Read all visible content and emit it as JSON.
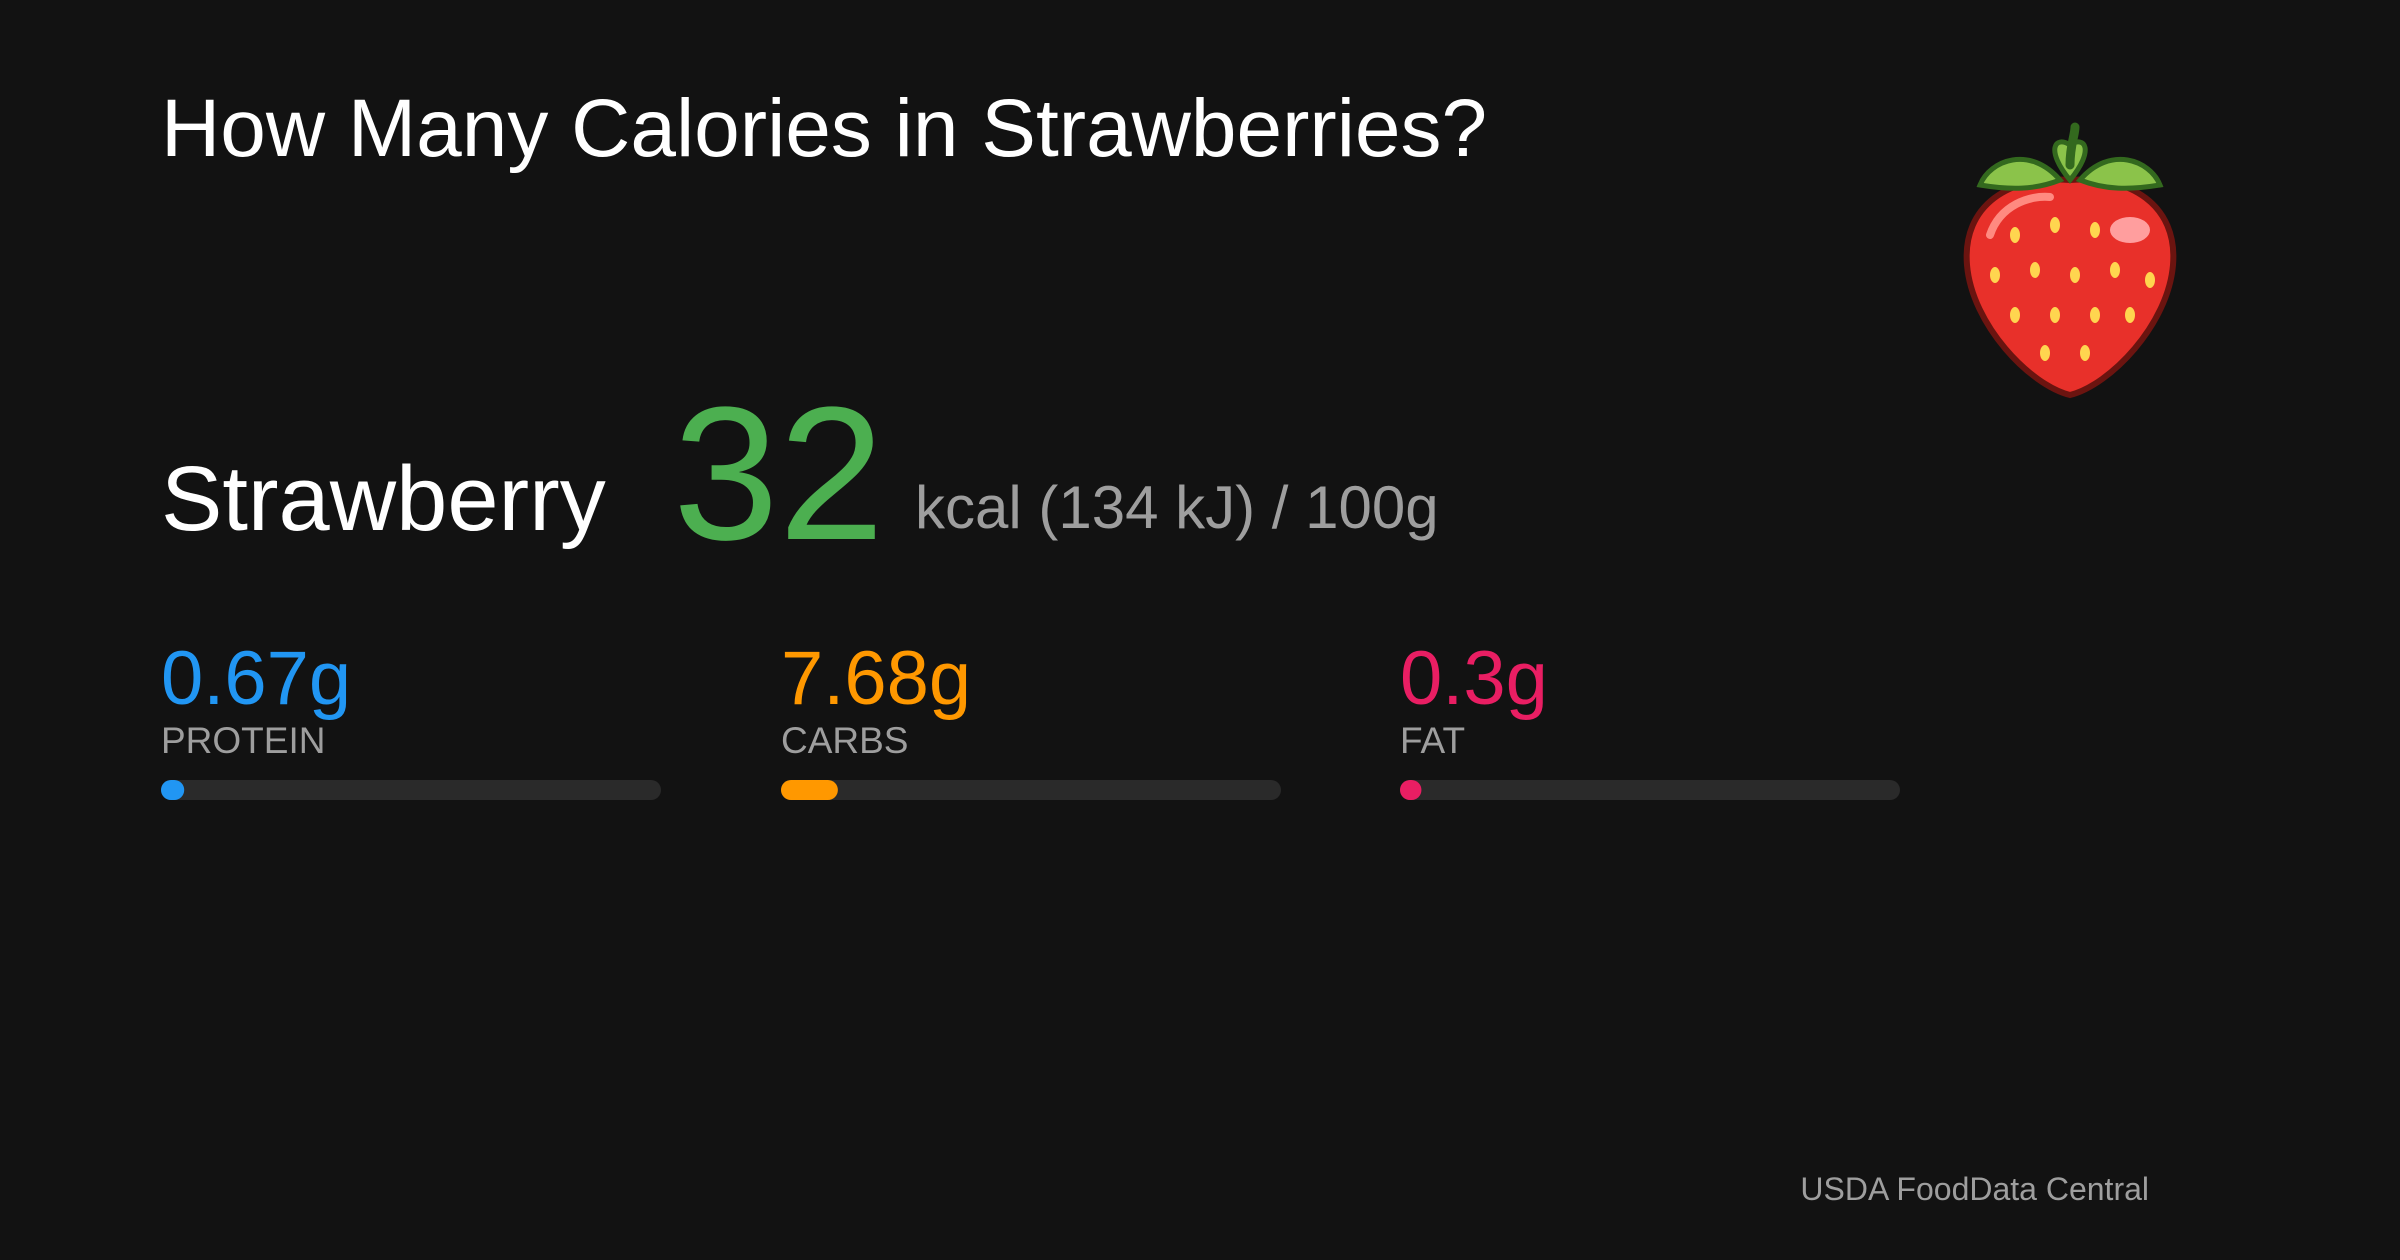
{
  "title": "How Many Calories in Strawberries?",
  "food": "Strawberry",
  "calories": 32,
  "calories_unit": "kcal (134 kJ) / 100g",
  "bar_range": [
    0,
    100
  ],
  "macros": [
    {
      "name": "PROTEIN",
      "value": 0.67,
      "value_label": "0.67g",
      "color": "#2196f3"
    },
    {
      "name": "CARBS",
      "value": 7.68,
      "value_label": "7.68g",
      "color": "#ff9800"
    },
    {
      "name": "FAT",
      "value": 0.3,
      "value_label": "0.3g",
      "color": "#e91e63"
    }
  ],
  "source": "USDA FoodData Central"
}
